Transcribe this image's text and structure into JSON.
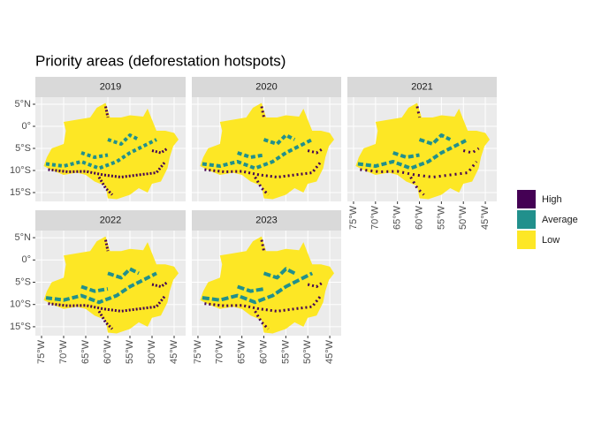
{
  "chart_data": {
    "type": "map",
    "title": "Priority areas (deforestation hotspots)",
    "panels": [
      "2019",
      "2020",
      "2021",
      "2022",
      "2023"
    ],
    "xlim": [
      -76.4,
      -42.4
    ],
    "ylim": [
      -17,
      6.6
    ],
    "xticks": [
      {
        "value": -75,
        "label": "75°W"
      },
      {
        "value": -70,
        "label": "70°W"
      },
      {
        "value": -65,
        "label": "65°W"
      },
      {
        "value": -60,
        "label": "60°W"
      },
      {
        "value": -55,
        "label": "55°W"
      },
      {
        "value": -50,
        "label": "50°W"
      },
      {
        "value": -45,
        "label": "45°W"
      }
    ],
    "yticks": [
      {
        "value": 5,
        "label": "5°N"
      },
      {
        "value": 0,
        "label": "0°"
      },
      {
        "value": -5,
        "label": "5°S"
      },
      {
        "value": -10,
        "label": "10°S"
      },
      {
        "value": -15,
        "label": "15°S"
      }
    ],
    "legend": [
      {
        "name": "High",
        "color": "#440154"
      },
      {
        "name": "Average",
        "color": "#21908c"
      },
      {
        "name": "Low",
        "color": "#fde725"
      }
    ]
  }
}
